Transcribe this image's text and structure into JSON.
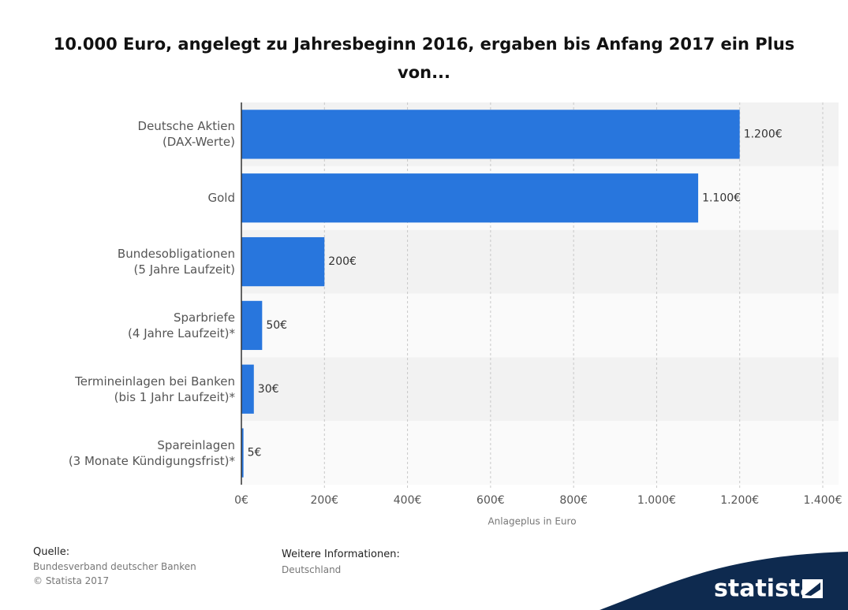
{
  "chart_data": {
    "type": "bar",
    "orientation": "horizontal",
    "title": "10.000 Euro, angelegt zu Jahresbeginn 2016, ergaben bis Anfang 2017 ein Plus von...",
    "categories": [
      "Deutsche Aktien\n(DAX-Werte)",
      "Gold",
      "Bundesobligationen\n(5 Jahre Laufzeit)",
      "Sparbriefe\n(4 Jahre Laufzeit)*",
      "Termineinlagen bei Banken\n(bis 1 Jahr Laufzeit)*",
      "Spareinlagen\n(3 Monate Kündigungsfrist)*"
    ],
    "values": [
      1200,
      1100,
      200,
      50,
      30,
      5
    ],
    "value_labels": [
      "1.200€",
      "1.100€",
      "200€",
      "50€",
      "30€",
      "5€"
    ],
    "color": "#2876dd",
    "xlim": [
      0,
      1400
    ],
    "xticks": [
      {
        "value": 0,
        "label": "0€"
      },
      {
        "value": 200,
        "label": "200€"
      },
      {
        "value": 400,
        "label": "400€"
      },
      {
        "value": 600,
        "label": "600€"
      },
      {
        "value": 800,
        "label": "800€"
      },
      {
        "value": 1000,
        "label": "1.000€"
      },
      {
        "value": 1200,
        "label": "1.200€"
      },
      {
        "value": 1400,
        "label": "1.400€"
      }
    ],
    "xlabel": "Anlageplus in Euro",
    "grid": true
  },
  "footer": {
    "source_label": "Quelle:",
    "source": "Bundesverband deutscher Banken",
    "copyright": "© Statista 2017",
    "info_label": "Weitere Informationen:",
    "info": "Deutschland",
    "brand": "statista"
  }
}
